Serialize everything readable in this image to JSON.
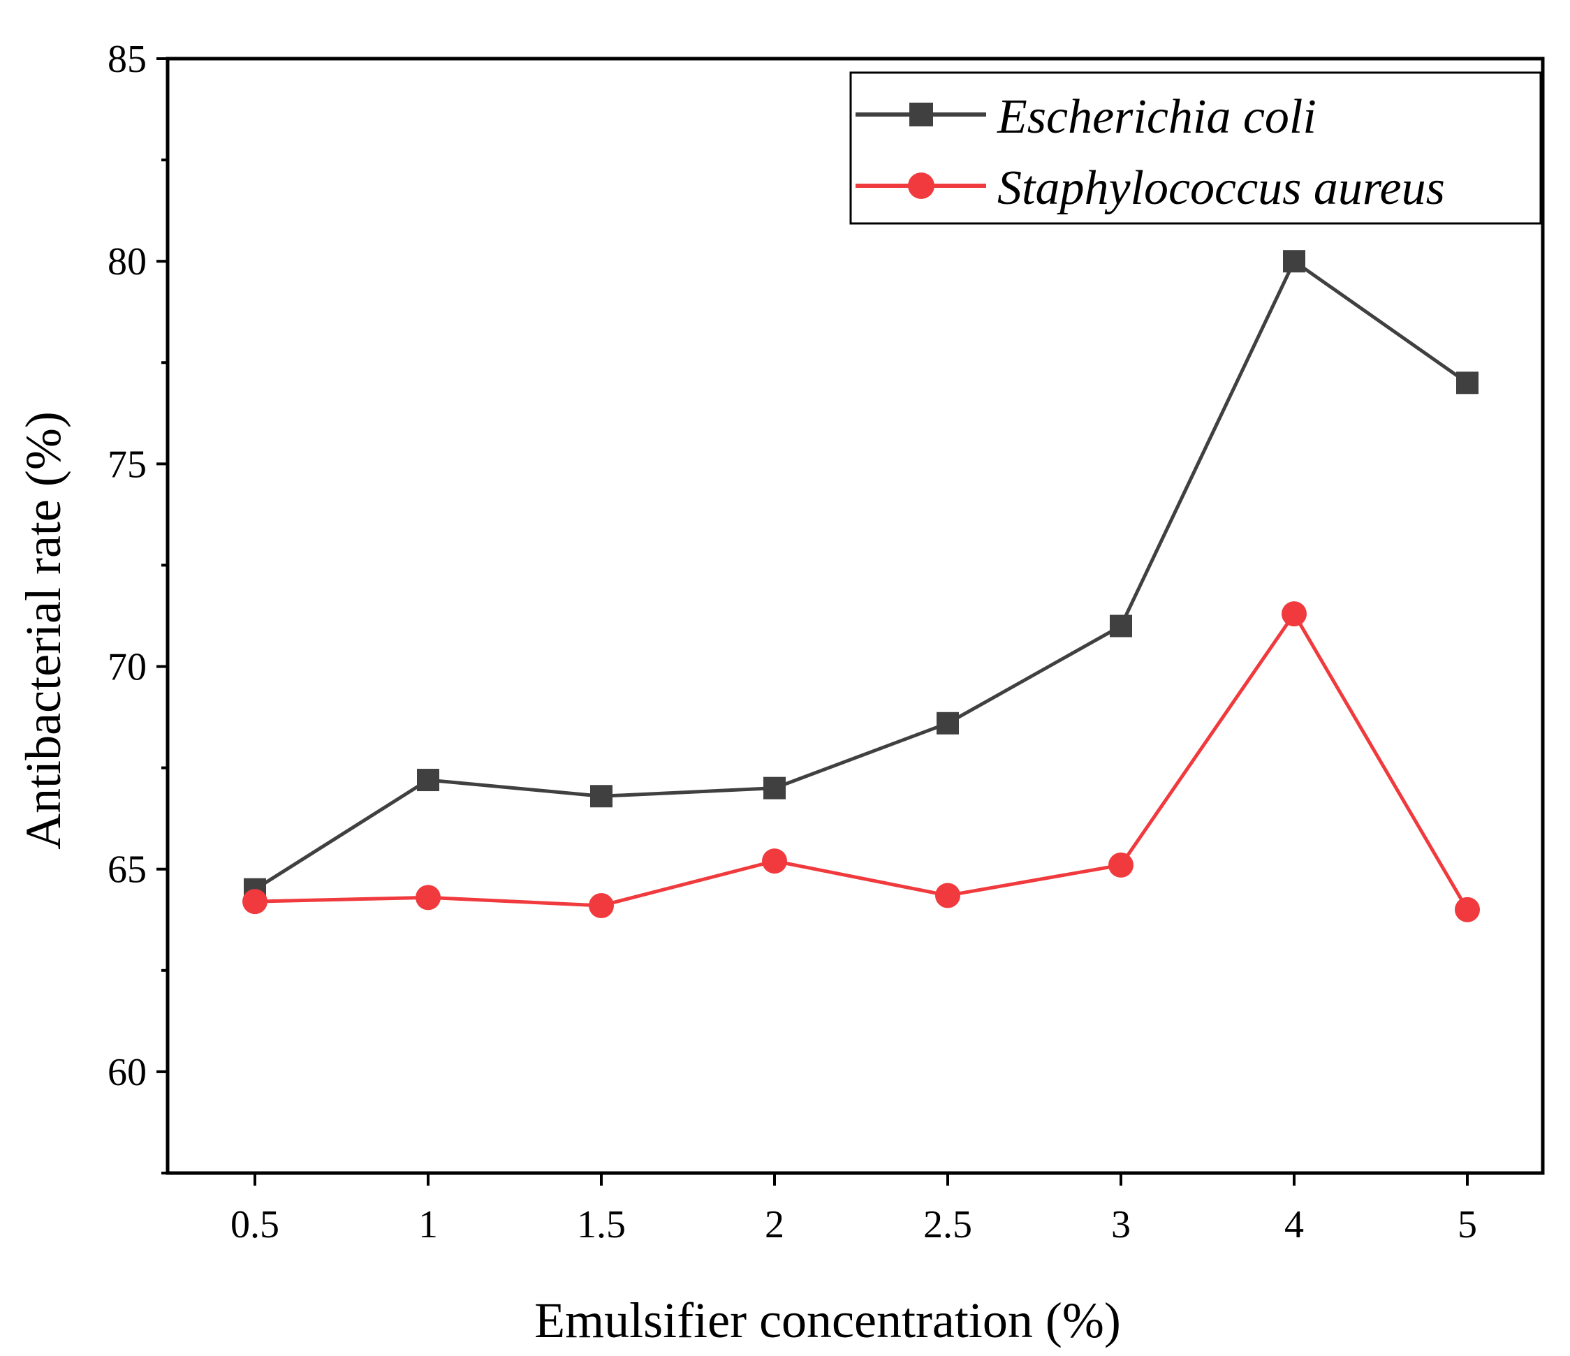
{
  "chart_data": {
    "type": "line",
    "title": "",
    "xlabel": "Emulsifier concentration (%)",
    "ylabel": "Antibacterial rate (%)",
    "categories": [
      "0.5",
      "1",
      "1.5",
      "2",
      "2.5",
      "3",
      "4",
      "5"
    ],
    "ylim": [
      57.5,
      85
    ],
    "yticks": [
      "60",
      "65",
      "70",
      "75",
      "80",
      "85"
    ],
    "grid": false,
    "legend_position": "top-right",
    "series": [
      {
        "name": "Escherichia coli",
        "marker": "square",
        "color": "#404040",
        "values": [
          64.5,
          67.2,
          66.8,
          67.0,
          68.6,
          71.0,
          80.0,
          77.0
        ]
      },
      {
        "name": "Staphylococcus aureus",
        "marker": "circle",
        "color": "#f03a3d",
        "values": [
          64.2,
          64.3,
          64.1,
          65.2,
          64.35,
          65.1,
          71.3,
          64.0
        ]
      }
    ]
  }
}
